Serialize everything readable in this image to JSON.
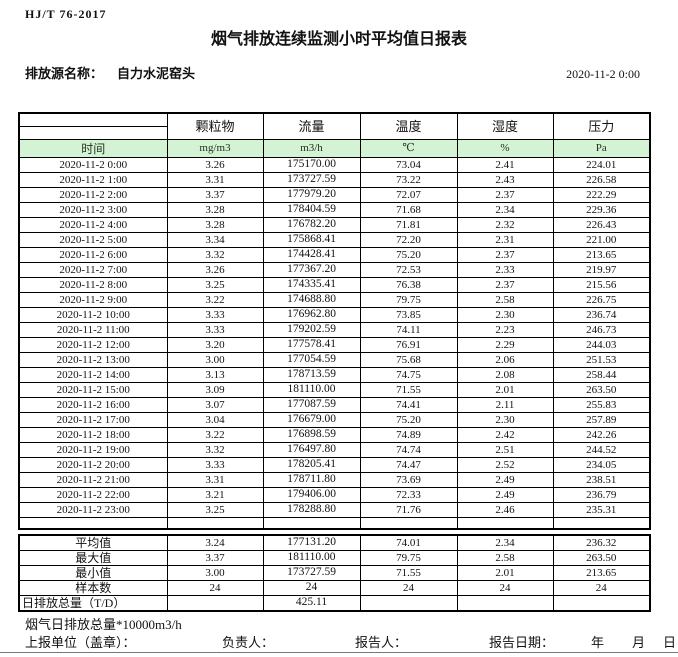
{
  "header": {
    "doc_code": "HJ/T 76-2017",
    "title": "烟气排放连续监测小时平均值日报表",
    "source_label": "排放源名称：",
    "source_name": "自力水泥窑头",
    "datetime": "2020-11-2 0:00"
  },
  "table": {
    "columns": [
      "颗粒物",
      "流量",
      "温度",
      "湿度",
      "压力"
    ],
    "units_row": {
      "time_label": "时间",
      "units": [
        "mg/m3",
        "m3/h",
        "℃",
        "%",
        "Pa"
      ]
    },
    "rows": [
      {
        "time": "2020-11-2 0:00",
        "values": [
          "3.26",
          "175170.00",
          "73.04",
          "2.41",
          "224.01"
        ]
      },
      {
        "time": "2020-11-2 1:00",
        "values": [
          "3.31",
          "173727.59",
          "73.22",
          "2.43",
          "226.58"
        ]
      },
      {
        "time": "2020-11-2 2:00",
        "values": [
          "3.37",
          "177979.20",
          "72.07",
          "2.37",
          "222.29"
        ]
      },
      {
        "time": "2020-11-2 3:00",
        "values": [
          "3.28",
          "178404.59",
          "71.68",
          "2.34",
          "229.36"
        ]
      },
      {
        "time": "2020-11-2 4:00",
        "values": [
          "3.28",
          "176782.20",
          "71.81",
          "2.32",
          "226.43"
        ]
      },
      {
        "time": "2020-11-2 5:00",
        "values": [
          "3.34",
          "175868.41",
          "72.20",
          "2.31",
          "221.00"
        ]
      },
      {
        "time": "2020-11-2 6:00",
        "values": [
          "3.32",
          "174428.41",
          "75.20",
          "2.37",
          "213.65"
        ]
      },
      {
        "time": "2020-11-2 7:00",
        "values": [
          "3.26",
          "177367.20",
          "72.53",
          "2.33",
          "219.97"
        ]
      },
      {
        "time": "2020-11-2 8:00",
        "values": [
          "3.25",
          "174335.41",
          "76.38",
          "2.37",
          "215.56"
        ]
      },
      {
        "time": "2020-11-2 9:00",
        "values": [
          "3.22",
          "174688.80",
          "79.75",
          "2.58",
          "226.75"
        ]
      },
      {
        "time": "2020-11-2 10:00",
        "values": [
          "3.33",
          "176962.80",
          "73.85",
          "2.30",
          "236.74"
        ]
      },
      {
        "time": "2020-11-2 11:00",
        "values": [
          "3.33",
          "179202.59",
          "74.11",
          "2.23",
          "246.73"
        ]
      },
      {
        "time": "2020-11-2 12:00",
        "values": [
          "3.20",
          "177578.41",
          "76.91",
          "2.29",
          "244.03"
        ]
      },
      {
        "time": "2020-11-2 13:00",
        "values": [
          "3.00",
          "177054.59",
          "75.68",
          "2.06",
          "251.53"
        ]
      },
      {
        "time": "2020-11-2 14:00",
        "values": [
          "3.13",
          "178713.59",
          "74.75",
          "2.08",
          "258.44"
        ]
      },
      {
        "time": "2020-11-2 15:00",
        "values": [
          "3.09",
          "181110.00",
          "71.55",
          "2.01",
          "263.50"
        ]
      },
      {
        "time": "2020-11-2 16:00",
        "values": [
          "3.07",
          "177087.59",
          "74.41",
          "2.11",
          "255.83"
        ]
      },
      {
        "time": "2020-11-2 17:00",
        "values": [
          "3.04",
          "176679.00",
          "75.20",
          "2.30",
          "257.89"
        ]
      },
      {
        "time": "2020-11-2 18:00",
        "values": [
          "3.22",
          "176898.59",
          "74.89",
          "2.42",
          "242.26"
        ]
      },
      {
        "time": "2020-11-2 19:00",
        "values": [
          "3.32",
          "176497.80",
          "74.74",
          "2.51",
          "244.52"
        ]
      },
      {
        "time": "2020-11-2 20:00",
        "values": [
          "3.33",
          "178205.41",
          "74.47",
          "2.52",
          "234.05"
        ]
      },
      {
        "time": "2020-11-2 21:00",
        "values": [
          "3.31",
          "178711.80",
          "73.69",
          "2.49",
          "238.51"
        ]
      },
      {
        "time": "2020-11-2 22:00",
        "values": [
          "3.21",
          "179406.00",
          "72.33",
          "2.49",
          "236.79"
        ]
      },
      {
        "time": "2020-11-2 23:00",
        "values": [
          "3.25",
          "178288.80",
          "71.76",
          "2.46",
          "235.31"
        ]
      }
    ]
  },
  "summary": {
    "rows": [
      {
        "label": "平均值",
        "values": [
          "3.24",
          "177131.20",
          "74.01",
          "2.34",
          "236.32"
        ]
      },
      {
        "label": "最大值",
        "values": [
          "3.37",
          "181110.00",
          "79.75",
          "2.58",
          "263.50"
        ]
      },
      {
        "label": "最小值",
        "values": [
          "3.00",
          "173727.59",
          "71.55",
          "2.01",
          "213.65"
        ]
      },
      {
        "label": "样本数",
        "values": [
          "24",
          "24",
          "24",
          "24",
          "24"
        ]
      },
      {
        "label": "日排放总量（T/D）",
        "values": [
          "",
          "425.11",
          "",
          "",
          ""
        ],
        "total_row": true
      }
    ]
  },
  "footer": {
    "note": "烟气日排放总量*10000m3/h",
    "report_unit_label": "上报单位（盖章）：",
    "responsible_label": "负责人：",
    "reporter_label": "报告人：",
    "report_date_label": "报告日期：",
    "year_label": "年",
    "month_label": "月",
    "day_label": "日"
  },
  "colors": {
    "green_header_bg": "#d4f3d4",
    "border": "#000000"
  }
}
